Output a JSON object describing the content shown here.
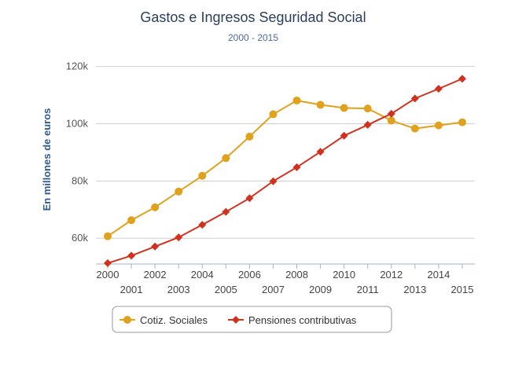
{
  "chart_data": {
    "type": "line",
    "title": "Gastos e Ingresos Seguridad Social",
    "subtitle": "2000 - 2015",
    "xlabel": "",
    "ylabel": "En millones de euros",
    "ylim": [
      51000,
      124000
    ],
    "yticks": [
      {
        "value": 60000,
        "label": "60k"
      },
      {
        "value": 80000,
        "label": "80k"
      },
      {
        "value": 100000,
        "label": "100k"
      },
      {
        "value": 120000,
        "label": "120k"
      }
    ],
    "x": [
      "2000",
      "2001",
      "2002",
      "2003",
      "2004",
      "2005",
      "2006",
      "2007",
      "2008",
      "2009",
      "2010",
      "2011",
      "2012",
      "2013",
      "2014",
      "2015"
    ],
    "series": [
      {
        "name": "Cotiz. Sociales",
        "color": "#e0a21c",
        "marker": "circle",
        "values": [
          60700,
          66300,
          70800,
          76300,
          81800,
          88000,
          95500,
          103300,
          108100,
          106600,
          105500,
          105300,
          101100,
          98300,
          99400,
          100500
        ]
      },
      {
        "name": "Pensiones contributivas",
        "color": "#d1321f",
        "marker": "diamond",
        "values": [
          51300,
          53900,
          57100,
          60300,
          64700,
          69200,
          74000,
          79900,
          84800,
          90200,
          95800,
          99600,
          103500,
          108800,
          112200,
          115700
        ]
      }
    ],
    "grid": true,
    "legend_position": "bottom-center"
  }
}
